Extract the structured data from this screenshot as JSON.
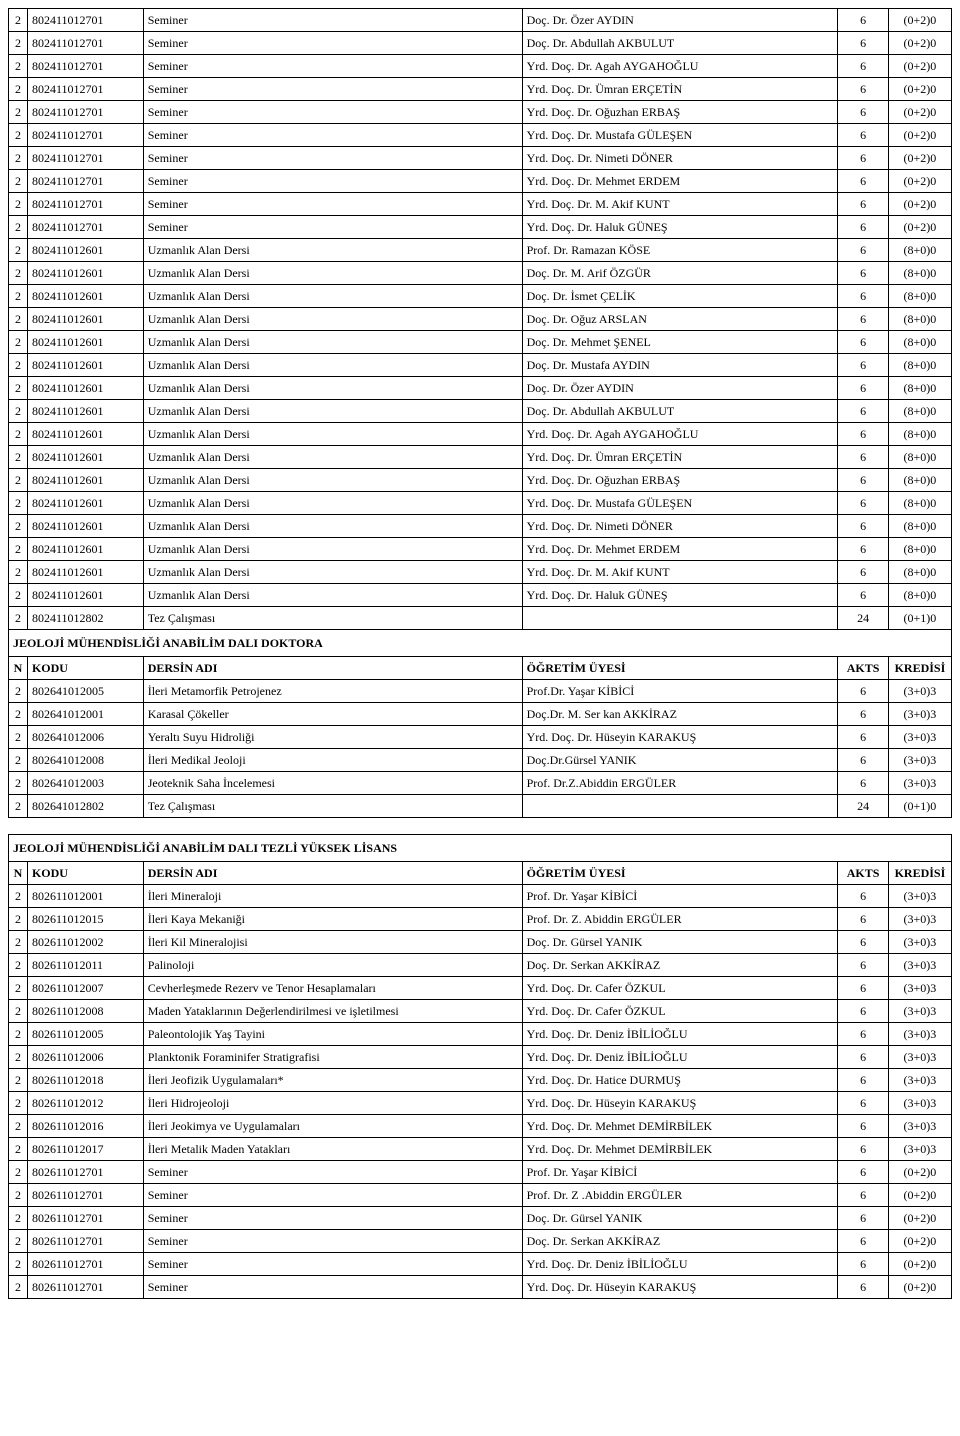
{
  "sections": [
    {
      "title": null,
      "header": null,
      "rows": [
        [
          "2",
          "802411012701",
          "Seminer",
          "Doç. Dr. Özer AYDIN",
          "6",
          "(0+2)0"
        ],
        [
          "2",
          "802411012701",
          "Seminer",
          "Doç. Dr. Abdullah AKBULUT",
          "6",
          "(0+2)0"
        ],
        [
          "2",
          "802411012701",
          "Seminer",
          "Yrd. Doç. Dr. Agah AYGAHOĞLU",
          "6",
          "(0+2)0"
        ],
        [
          "2",
          "802411012701",
          "Seminer",
          "Yrd. Doç. Dr. Ümran ERÇETİN",
          "6",
          "(0+2)0"
        ],
        [
          "2",
          "802411012701",
          "Seminer",
          "Yrd. Doç. Dr. Oğuzhan ERBAŞ",
          "6",
          "(0+2)0"
        ],
        [
          "2",
          "802411012701",
          "Seminer",
          "Yrd. Doç. Dr. Mustafa GÜLEŞEN",
          "6",
          "(0+2)0"
        ],
        [
          "2",
          "802411012701",
          "Seminer",
          "Yrd. Doç. Dr. Nimeti DÖNER",
          "6",
          "(0+2)0"
        ],
        [
          "2",
          "802411012701",
          "Seminer",
          "Yrd. Doç. Dr. Mehmet ERDEM",
          "6",
          "(0+2)0"
        ],
        [
          "2",
          "802411012701",
          "Seminer",
          "Yrd. Doç. Dr. M. Akif KUNT",
          "6",
          "(0+2)0"
        ],
        [
          "2",
          "802411012701",
          "Seminer",
          "Yrd. Doç. Dr. Haluk GÜNEŞ",
          "6",
          "(0+2)0"
        ],
        [
          "2",
          "802411012601",
          "Uzmanlık Alan Dersi",
          "Prof. Dr. Ramazan KÖSE",
          "6",
          "(8+0)0"
        ],
        [
          "2",
          "802411012601",
          "Uzmanlık Alan Dersi",
          "Doç. Dr. M. Arif ÖZGÜR",
          "6",
          "(8+0)0"
        ],
        [
          "2",
          "802411012601",
          "Uzmanlık Alan Dersi",
          "Doç. Dr. İsmet ÇELİK",
          "6",
          "(8+0)0"
        ],
        [
          "2",
          "802411012601",
          "Uzmanlık Alan Dersi",
          "Doç. Dr. Oğuz ARSLAN",
          "6",
          "(8+0)0"
        ],
        [
          "2",
          "802411012601",
          "Uzmanlık Alan Dersi",
          "Doç. Dr. Mehmet ŞENEL",
          "6",
          "(8+0)0"
        ],
        [
          "2",
          "802411012601",
          "Uzmanlık Alan Dersi",
          "Doç. Dr. Mustafa AYDIN",
          "6",
          "(8+0)0"
        ],
        [
          "2",
          "802411012601",
          "Uzmanlık Alan Dersi",
          "Doç. Dr. Özer AYDIN",
          "6",
          "(8+0)0"
        ],
        [
          "2",
          "802411012601",
          "Uzmanlık Alan Dersi",
          "Doç. Dr. Abdullah AKBULUT",
          "6",
          "(8+0)0"
        ],
        [
          "2",
          "802411012601",
          "Uzmanlık Alan Dersi",
          "Yrd. Doç. Dr. Agah AYGAHOĞLU",
          "6",
          "(8+0)0"
        ],
        [
          "2",
          "802411012601",
          "Uzmanlık Alan Dersi",
          "Yrd. Doç. Dr. Ümran ERÇETİN",
          "6",
          "(8+0)0"
        ],
        [
          "2",
          "802411012601",
          "Uzmanlık Alan Dersi",
          "Yrd. Doç. Dr. Oğuzhan ERBAŞ",
          "6",
          "(8+0)0"
        ],
        [
          "2",
          "802411012601",
          "Uzmanlık Alan Dersi",
          "Yrd. Doç. Dr. Mustafa GÜLEŞEN",
          "6",
          "(8+0)0"
        ],
        [
          "2",
          "802411012601",
          "Uzmanlık Alan Dersi",
          "Yrd. Doç. Dr. Nimeti DÖNER",
          "6",
          "(8+0)0"
        ],
        [
          "2",
          "802411012601",
          "Uzmanlık Alan Dersi",
          "Yrd. Doç. Dr. Mehmet ERDEM",
          "6",
          "(8+0)0"
        ],
        [
          "2",
          "802411012601",
          "Uzmanlık Alan Dersi",
          "Yrd. Doç. Dr. M. Akif KUNT",
          "6",
          "(8+0)0"
        ],
        [
          "2",
          "802411012601",
          "Uzmanlık Alan Dersi",
          "Yrd. Doç. Dr. Haluk GÜNEŞ",
          "6",
          "(8+0)0"
        ],
        [
          "2",
          "802411012802",
          "Tez Çalışması",
          "",
          "24",
          "(0+1)0"
        ]
      ]
    },
    {
      "title": "JEOLOJİ MÜHENDİSLİĞİ ANABİLİM DALI DOKTORA",
      "header": [
        "N",
        "KODU",
        "DERSİN ADI",
        "ÖĞRETİM ÜYESİ",
        "AKTS",
        "KREDİSİ"
      ],
      "rows": [
        [
          "2",
          "802641012005",
          "İleri Metamorfik Petrojenez",
          "Prof.Dr. Yaşar KİBİCİ",
          "6",
          "(3+0)3"
        ],
        [
          "2",
          "802641012001",
          "Karasal Çökeller",
          "Doç.Dr. M. Ser kan AKKİRAZ",
          "6",
          "(3+0)3"
        ],
        [
          "2",
          "802641012006",
          "Yeraltı Suyu Hidroliği",
          "Yrd. Doç. Dr. Hüseyin KARAKUŞ",
          "6",
          "(3+0)3"
        ],
        [
          "2",
          "802641012008",
          "İleri Medikal Jeoloji",
          "Doç.Dr.Gürsel YANIK",
          "6",
          "(3+0)3"
        ],
        [
          "2",
          "802641012003",
          "Jeoteknik Saha İncelemesi",
          "Prof. Dr.Z.Abiddin ERGÜLER",
          "6",
          "(3+0)3"
        ],
        [
          "2",
          "802641012802",
          "Tez Çalışması",
          "",
          "24",
          "(0+1)0"
        ]
      ]
    },
    {
      "title": "JEOLOJİ MÜHENDİSLİĞİ ANABİLİM DALI TEZLİ YÜKSEK LİSANS",
      "header": [
        "N",
        "KODU",
        "DERSİN ADI",
        "ÖĞRETİM ÜYESİ",
        "AKTS",
        "KREDİSİ"
      ],
      "spacer_before": true,
      "rows": [
        [
          "2",
          "802611012001",
          "İleri Mineraloji",
          "Prof. Dr. Yaşar KİBİCİ",
          "6",
          "(3+0)3"
        ],
        [
          "2",
          "802611012015",
          "İleri Kaya Mekaniği",
          "Prof. Dr. Z. Abiddin ERGÜLER",
          "6",
          "(3+0)3"
        ],
        [
          "2",
          "802611012002",
          "İleri Kil Mineralojisi",
          "Doç. Dr. Gürsel YANIK",
          "6",
          "(3+0)3"
        ],
        [
          "2",
          "802611012011",
          "Palinoloji",
          "Doç. Dr. Serkan AKKİRAZ",
          "6",
          "(3+0)3"
        ],
        [
          "2",
          "802611012007",
          "Cevherleşmede Rezerv ve Tenor Hesaplamaları",
          "Yrd. Doç. Dr. Cafer ÖZKUL",
          "6",
          "(3+0)3"
        ],
        [
          "2",
          "802611012008",
          "Maden Yataklarının Değerlendirilmesi ve işletilmesi",
          "Yrd. Doç. Dr. Cafer ÖZKUL",
          "6",
          "(3+0)3"
        ],
        [
          "2",
          "802611012005",
          "Paleontolojik Yaş Tayini",
          "Yrd. Doç. Dr. Deniz İBİLİOĞLU",
          "6",
          "(3+0)3"
        ],
        [
          "2",
          "802611012006",
          "Planktonik Foraminifer Stratigrafisi",
          "Yrd. Doç. Dr. Deniz İBİLİOĞLU",
          "6",
          "(3+0)3"
        ],
        [
          "2",
          "802611012018",
          "İleri Jeofizik Uygulamaları*",
          "Yrd. Doç. Dr. Hatice DURMUŞ",
          "6",
          "(3+0)3"
        ],
        [
          "2",
          "802611012012",
          "İleri Hidrojeoloji",
          "Yrd. Doç. Dr. Hüseyin KARAKUŞ",
          "6",
          "(3+0)3"
        ],
        [
          "2",
          "802611012016",
          "İleri Jeokimya ve Uygulamaları",
          "Yrd. Doç. Dr. Mehmet DEMİRBİLEK",
          "6",
          "(3+0)3"
        ],
        [
          "2",
          "802611012017",
          "İleri Metalik Maden Yatakları",
          "Yrd. Doç. Dr. Mehmet DEMİRBİLEK",
          "6",
          "(3+0)3"
        ],
        [
          "2",
          "802611012701",
          "Seminer",
          "Prof. Dr. Yaşar KİBİCİ",
          "6",
          "(0+2)0"
        ],
        [
          "2",
          "802611012701",
          "Seminer",
          "Prof. Dr. Z .Abiddin ERGÜLER",
          "6",
          "(0+2)0"
        ],
        [
          "2",
          "802611012701",
          "Seminer",
          "Doç. Dr. Gürsel YANIK",
          "6",
          "(0+2)0"
        ],
        [
          "2",
          "802611012701",
          "Seminer",
          "Doç. Dr. Serkan AKKİRAZ",
          "6",
          "(0+2)0"
        ],
        [
          "2",
          "802611012701",
          "Seminer",
          "Yrd. Doç. Dr. Deniz İBİLİOĞLU",
          "6",
          "(0+2)0"
        ],
        [
          "2",
          "802611012701",
          "Seminer",
          "Yrd. Doç. Dr. Hüseyin KARAKUŞ",
          "6",
          "(0+2)0"
        ]
      ]
    }
  ]
}
